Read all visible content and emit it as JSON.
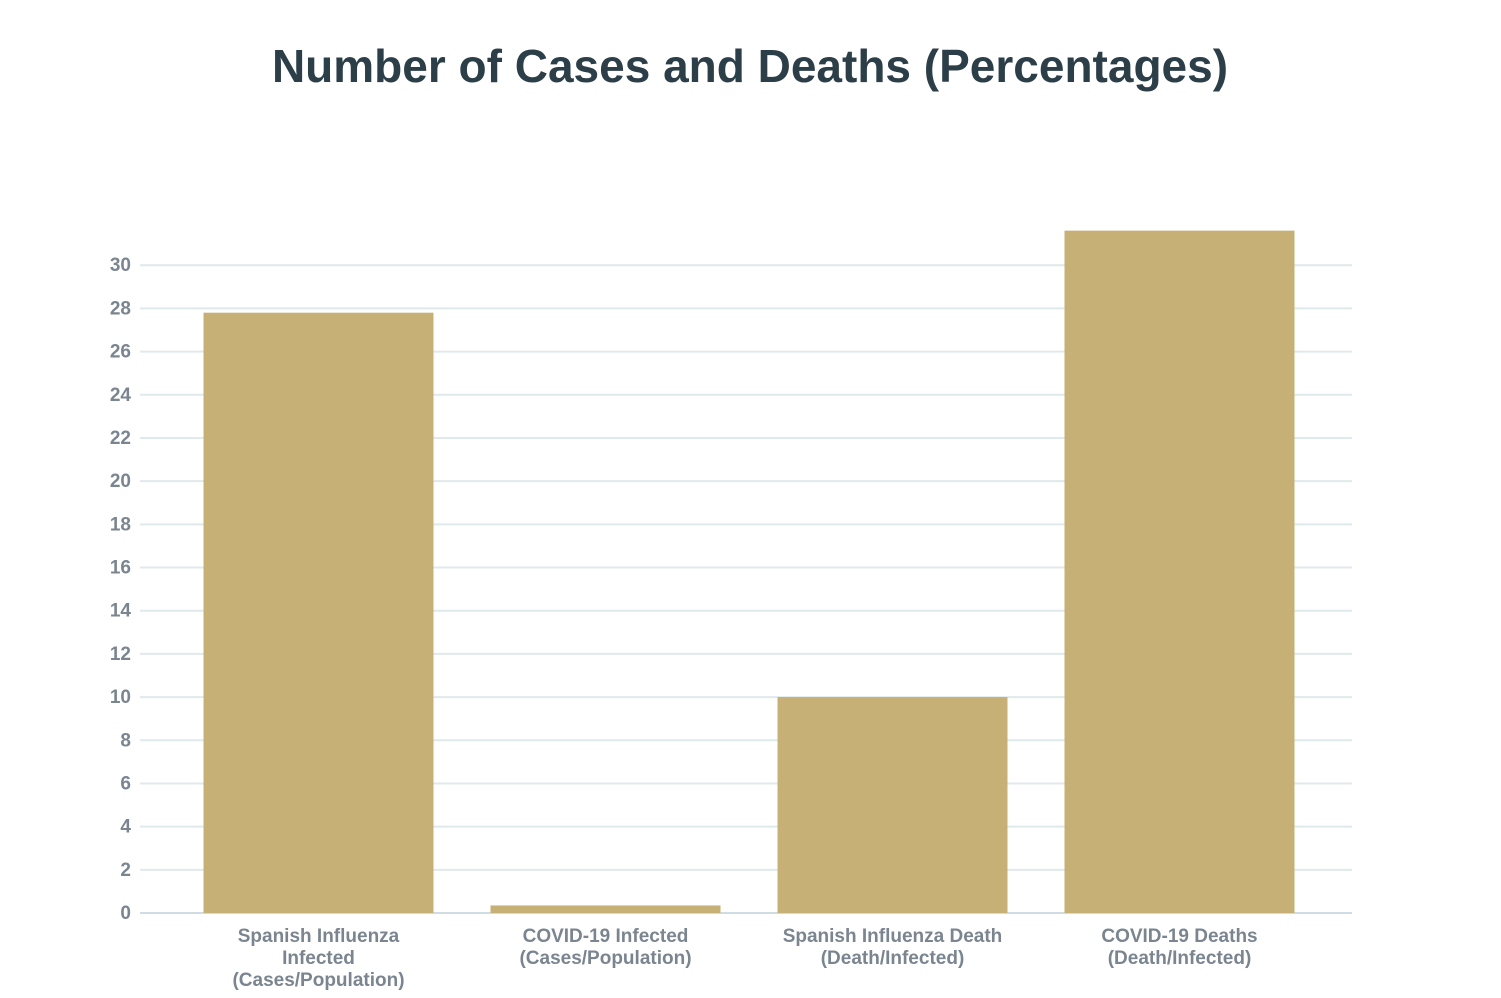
{
  "chart_data": {
    "type": "bar",
    "title": "Number of Cases and Deaths (Percentages)",
    "categories": [
      "Spanish Influenza Infected (Cases/Population)",
      "COVID-19 Infected (Cases/Population)",
      "Spanish Influenza Death (Death/Infected)",
      "COVID-19 Deaths (Death/Infected)"
    ],
    "values": [
      27.8,
      0.35,
      10,
      31.6
    ],
    "color": "#c6b076",
    "ylim": [
      0,
      32
    ],
    "yticks": [
      0,
      2,
      4,
      6,
      8,
      10,
      12,
      14,
      16,
      18,
      20,
      22,
      24,
      26,
      28,
      30
    ],
    "grid": true
  }
}
